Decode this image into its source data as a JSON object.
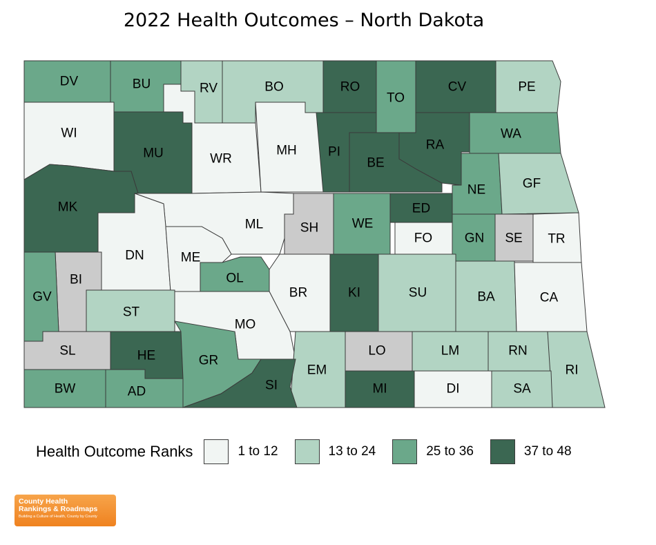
{
  "title": "2022 Health Outcomes – North Dakota",
  "legend": {
    "title": "Health Outcome Ranks",
    "items": [
      {
        "label": "1 to 12",
        "color": "#f1f5f3"
      },
      {
        "label": "13 to 24",
        "color": "#b2d4c3"
      },
      {
        "label": "25 to 36",
        "color": "#6ba88a"
      },
      {
        "label": "37 to 48",
        "color": "#3b6752"
      }
    ]
  },
  "no_data_color": "#cbcbcb",
  "counties": [
    {
      "code": "DV",
      "group": 2
    },
    {
      "code": "BU",
      "group": 2
    },
    {
      "code": "RV",
      "group": 1
    },
    {
      "code": "BO",
      "group": 1
    },
    {
      "code": "RO",
      "group": 3
    },
    {
      "code": "TO",
      "group": 2
    },
    {
      "code": "CV",
      "group": 3
    },
    {
      "code": "PE",
      "group": 1
    },
    {
      "code": "WI",
      "group": 0
    },
    {
      "code": "MU",
      "group": 3
    },
    {
      "code": "WR",
      "group": 0
    },
    {
      "code": "MH",
      "group": 0
    },
    {
      "code": "PI",
      "group": 3
    },
    {
      "code": "BE",
      "group": 3
    },
    {
      "code": "RA",
      "group": 3
    },
    {
      "code": "WA",
      "group": 2
    },
    {
      "code": "NE",
      "group": 2
    },
    {
      "code": "GF",
      "group": 1
    },
    {
      "code": "MK",
      "group": 3
    },
    {
      "code": "ML",
      "group": 0
    },
    {
      "code": "SH",
      "group": -1
    },
    {
      "code": "WE",
      "group": 2
    },
    {
      "code": "ED",
      "group": 3
    },
    {
      "code": "FO",
      "group": 0
    },
    {
      "code": "GN",
      "group": 2
    },
    {
      "code": "SE",
      "group": -1
    },
    {
      "code": "TR",
      "group": 0
    },
    {
      "code": "DN",
      "group": 0
    },
    {
      "code": "ME",
      "group": 0
    },
    {
      "code": "OL",
      "group": 2
    },
    {
      "code": "BI",
      "group": -1
    },
    {
      "code": "GV",
      "group": 2
    },
    {
      "code": "BR",
      "group": 0
    },
    {
      "code": "KI",
      "group": 3
    },
    {
      "code": "SU",
      "group": 1
    },
    {
      "code": "BA",
      "group": 1
    },
    {
      "code": "CA",
      "group": 0
    },
    {
      "code": "ST",
      "group": 1
    },
    {
      "code": "MO",
      "group": 0
    },
    {
      "code": "SL",
      "group": -1
    },
    {
      "code": "HE",
      "group": 3
    },
    {
      "code": "GR",
      "group": 2
    },
    {
      "code": "EM",
      "group": 1
    },
    {
      "code": "LO",
      "group": -1
    },
    {
      "code": "LM",
      "group": 1
    },
    {
      "code": "RN",
      "group": 1
    },
    {
      "code": "RI",
      "group": 1
    },
    {
      "code": "SI",
      "group": 3
    },
    {
      "code": "MI",
      "group": 3
    },
    {
      "code": "DI",
      "group": 0
    },
    {
      "code": "SA",
      "group": 1
    },
    {
      "code": "BW",
      "group": 2
    },
    {
      "code": "AD",
      "group": 2
    }
  ],
  "logo": {
    "line1": "County Health",
    "line2": "Rankings & Roadmaps",
    "line3": "Building a Culture of Health, County by County"
  }
}
